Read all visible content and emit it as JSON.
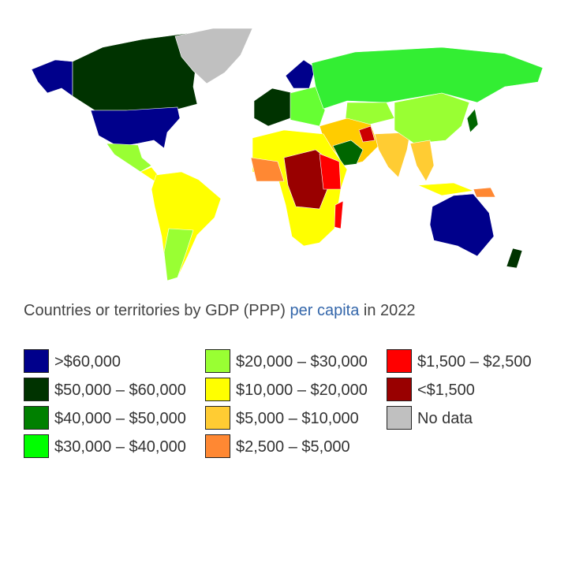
{
  "caption": {
    "before": "Countries or territories by GDP (PPP)",
    "link": "per capita",
    "after": "in 2022"
  },
  "legend": [
    {
      "color": "#00008b",
      "label": ">$60,000"
    },
    {
      "color": "#003300",
      "label": "$50,000 – $60,000"
    },
    {
      "color": "#008000",
      "label": "$40,000 – $50,000"
    },
    {
      "color": "#00ff00",
      "label": "$30,000 – $40,000"
    },
    {
      "color": "#99ff33",
      "label": "$20,000 – $30,000"
    },
    {
      "color": "#ffff00",
      "label": "$10,000 – $20,000"
    },
    {
      "color": "#ffcc33",
      "label": "$5,000 – $10,000"
    },
    {
      "color": "#ff8833",
      "label": "$2,500 – $5,000"
    },
    {
      "color": "#ff0000",
      "label": "$1,500 – $2,500"
    },
    {
      "color": "#990000",
      "label": "<$1,500"
    },
    {
      "color": "#c0c0c0",
      "label": "No data"
    }
  ]
}
